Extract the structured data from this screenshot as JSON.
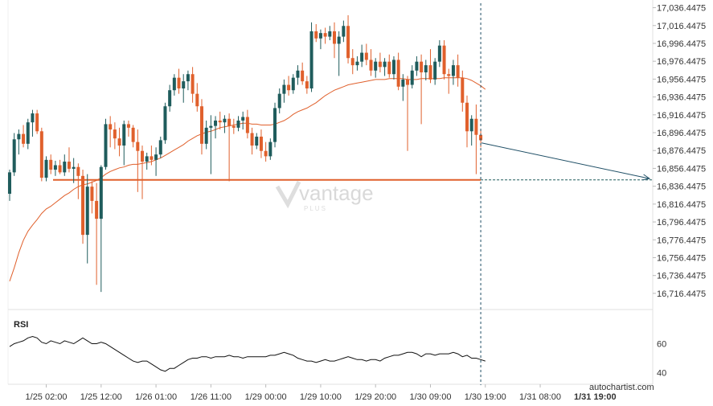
{
  "chart_data": {
    "type": "candlestick",
    "y_ticks": [
      "17,036.4475",
      "17,016.4475",
      "16,996.4475",
      "16,976.4475",
      "16,956.4475",
      "16,936.4475",
      "16,916.4475",
      "16,896.4475",
      "16,876.4475",
      "16,856.4475",
      "16,836.4475",
      "16,816.4475",
      "16,796.4475",
      "16,776.4475",
      "16,756.4475",
      "16,736.4475",
      "16,716.4475"
    ],
    "ylim": [
      16706.4475,
      17041.4475
    ],
    "x_ticks": [
      "1/25 02:00",
      "1/25 12:00",
      "1/26 01:00",
      "1/26 11:00",
      "1/29 00:00",
      "1/29 10:00",
      "1/29 20:00",
      "1/30 09:00",
      "1/30 19:00",
      "1/31 08:00",
      "1/31 19:00"
    ],
    "x_tick_index": [
      8,
      20,
      32,
      44,
      56,
      68,
      80,
      92,
      104,
      116,
      128
    ],
    "highlight_label": "1/31 19:00",
    "support_level": 16843.5,
    "forecast_target": 16845,
    "candles": [
      {
        "o": 16828,
        "h": 16855,
        "l": 16820,
        "c": 16852
      },
      {
        "o": 16852,
        "h": 16896,
        "l": 16848,
        "c": 16889
      },
      {
        "o": 16889,
        "h": 16900,
        "l": 16872,
        "c": 16895
      },
      {
        "o": 16895,
        "h": 16905,
        "l": 16880,
        "c": 16884
      },
      {
        "o": 16884,
        "h": 16912,
        "l": 16878,
        "c": 16908
      },
      {
        "o": 16908,
        "h": 16922,
        "l": 16892,
        "c": 16918
      },
      {
        "o": 16918,
        "h": 16922,
        "l": 16895,
        "c": 16898
      },
      {
        "o": 16898,
        "h": 16902,
        "l": 16842,
        "c": 16846
      },
      {
        "o": 16846,
        "h": 16870,
        "l": 16842,
        "c": 16866
      },
      {
        "o": 16866,
        "h": 16872,
        "l": 16850,
        "c": 16855
      },
      {
        "o": 16855,
        "h": 16865,
        "l": 16848,
        "c": 16860
      },
      {
        "o": 16860,
        "h": 16866,
        "l": 16850,
        "c": 16852
      },
      {
        "o": 16852,
        "h": 16872,
        "l": 16848,
        "c": 16864
      },
      {
        "o": 16864,
        "h": 16880,
        "l": 16852,
        "c": 16856
      },
      {
        "o": 16856,
        "h": 16868,
        "l": 16840,
        "c": 16858
      },
      {
        "o": 16858,
        "h": 16862,
        "l": 16822,
        "c": 16848
      },
      {
        "o": 16848,
        "h": 16855,
        "l": 16772,
        "c": 16782
      },
      {
        "o": 16782,
        "h": 16850,
        "l": 16750,
        "c": 16836
      },
      {
        "o": 16836,
        "h": 16842,
        "l": 16806,
        "c": 16820
      },
      {
        "o": 16820,
        "h": 16840,
        "l": 16726,
        "c": 16800
      },
      {
        "o": 16800,
        "h": 16860,
        "l": 16718,
        "c": 16858
      },
      {
        "o": 16858,
        "h": 16912,
        "l": 16855,
        "c": 16906
      },
      {
        "o": 16906,
        "h": 16915,
        "l": 16880,
        "c": 16900
      },
      {
        "o": 16900,
        "h": 16908,
        "l": 16878,
        "c": 16890
      },
      {
        "o": 16890,
        "h": 16902,
        "l": 16870,
        "c": 16882
      },
      {
        "o": 16882,
        "h": 16910,
        "l": 16860,
        "c": 16906
      },
      {
        "o": 16906,
        "h": 16910,
        "l": 16892,
        "c": 16902
      },
      {
        "o": 16902,
        "h": 16905,
        "l": 16880,
        "c": 16886
      },
      {
        "o": 16886,
        "h": 16900,
        "l": 16830,
        "c": 16876
      },
      {
        "o": 16876,
        "h": 16882,
        "l": 16822,
        "c": 16864
      },
      {
        "o": 16864,
        "h": 16874,
        "l": 16855,
        "c": 16870
      },
      {
        "o": 16870,
        "h": 16882,
        "l": 16860,
        "c": 16866
      },
      {
        "o": 16866,
        "h": 16880,
        "l": 16848,
        "c": 16872
      },
      {
        "o": 16872,
        "h": 16892,
        "l": 16868,
        "c": 16888
      },
      {
        "o": 16888,
        "h": 16930,
        "l": 16884,
        "c": 16926
      },
      {
        "o": 16926,
        "h": 16950,
        "l": 16920,
        "c": 16944
      },
      {
        "o": 16944,
        "h": 16962,
        "l": 16938,
        "c": 16958
      },
      {
        "o": 16958,
        "h": 16968,
        "l": 16940,
        "c": 16946
      },
      {
        "o": 16946,
        "h": 16962,
        "l": 16930,
        "c": 16954
      },
      {
        "o": 16954,
        "h": 16966,
        "l": 16944,
        "c": 16962
      },
      {
        "o": 16962,
        "h": 16970,
        "l": 16930,
        "c": 16940
      },
      {
        "o": 16940,
        "h": 16952,
        "l": 16920,
        "c": 16926
      },
      {
        "o": 16926,
        "h": 16934,
        "l": 16872,
        "c": 16884
      },
      {
        "o": 16884,
        "h": 16910,
        "l": 16878,
        "c": 16902
      },
      {
        "o": 16902,
        "h": 16916,
        "l": 16850,
        "c": 16904
      },
      {
        "o": 16904,
        "h": 16915,
        "l": 16890,
        "c": 16910
      },
      {
        "o": 16910,
        "h": 16920,
        "l": 16900,
        "c": 16908
      },
      {
        "o": 16908,
        "h": 16916,
        "l": 16896,
        "c": 16912
      },
      {
        "o": 16912,
        "h": 16918,
        "l": 16842,
        "c": 16904
      },
      {
        "o": 16904,
        "h": 16912,
        "l": 16895,
        "c": 16902
      },
      {
        "o": 16902,
        "h": 16915,
        "l": 16898,
        "c": 16910
      },
      {
        "o": 16910,
        "h": 16920,
        "l": 16900,
        "c": 16914
      },
      {
        "o": 16914,
        "h": 16922,
        "l": 16890,
        "c": 16896
      },
      {
        "o": 16896,
        "h": 16902,
        "l": 16872,
        "c": 16882
      },
      {
        "o": 16882,
        "h": 16896,
        "l": 16878,
        "c": 16892
      },
      {
        "o": 16892,
        "h": 16900,
        "l": 16868,
        "c": 16876
      },
      {
        "o": 16876,
        "h": 16886,
        "l": 16864,
        "c": 16870
      },
      {
        "o": 16870,
        "h": 16890,
        "l": 16866,
        "c": 16886
      },
      {
        "o": 16886,
        "h": 16930,
        "l": 16880,
        "c": 16924
      },
      {
        "o": 16924,
        "h": 16946,
        "l": 16918,
        "c": 16940
      },
      {
        "o": 16940,
        "h": 16956,
        "l": 16930,
        "c": 16950
      },
      {
        "o": 16950,
        "h": 16960,
        "l": 16938,
        "c": 16944
      },
      {
        "o": 16944,
        "h": 16962,
        "l": 16940,
        "c": 16958
      },
      {
        "o": 16958,
        "h": 16972,
        "l": 16950,
        "c": 16966
      },
      {
        "o": 16966,
        "h": 16975,
        "l": 16950,
        "c": 16954
      },
      {
        "o": 16954,
        "h": 16960,
        "l": 16940,
        "c": 16946
      },
      {
        "o": 16946,
        "h": 17020,
        "l": 16942,
        "c": 17010
      },
      {
        "o": 17010,
        "h": 17018,
        "l": 16998,
        "c": 17002
      },
      {
        "o": 17002,
        "h": 17012,
        "l": 16990,
        "c": 17008
      },
      {
        "o": 17008,
        "h": 17014,
        "l": 16996,
        "c": 17004
      },
      {
        "o": 17004,
        "h": 17016,
        "l": 17000,
        "c": 17010
      },
      {
        "o": 17010,
        "h": 17020,
        "l": 16980,
        "c": 16996
      },
      {
        "o": 16996,
        "h": 17010,
        "l": 16960,
        "c": 17004
      },
      {
        "o": 17004,
        "h": 17022,
        "l": 16998,
        "c": 17016
      },
      {
        "o": 17016,
        "h": 17028,
        "l": 16974,
        "c": 16980
      },
      {
        "o": 16980,
        "h": 16990,
        "l": 16962,
        "c": 16972
      },
      {
        "o": 16972,
        "h": 16982,
        "l": 16966,
        "c": 16976
      },
      {
        "o": 16976,
        "h": 16995,
        "l": 16970,
        "c": 16986
      },
      {
        "o": 16986,
        "h": 16996,
        "l": 16972,
        "c": 16978
      },
      {
        "o": 16978,
        "h": 16990,
        "l": 16960,
        "c": 16966
      },
      {
        "o": 16966,
        "h": 16980,
        "l": 16958,
        "c": 16976
      },
      {
        "o": 16976,
        "h": 16986,
        "l": 16964,
        "c": 16970
      },
      {
        "o": 16970,
        "h": 16980,
        "l": 16960,
        "c": 16976
      },
      {
        "o": 16976,
        "h": 16984,
        "l": 16958,
        "c": 16962
      },
      {
        "o": 16962,
        "h": 16982,
        "l": 16956,
        "c": 16978
      },
      {
        "o": 16978,
        "h": 16986,
        "l": 16944,
        "c": 16948
      },
      {
        "o": 16948,
        "h": 16962,
        "l": 16932,
        "c": 16956
      },
      {
        "o": 16956,
        "h": 16960,
        "l": 16876,
        "c": 16950
      },
      {
        "o": 16950,
        "h": 16972,
        "l": 16946,
        "c": 16966
      },
      {
        "o": 16966,
        "h": 16982,
        "l": 16960,
        "c": 16976
      },
      {
        "o": 16976,
        "h": 16984,
        "l": 16906,
        "c": 16964
      },
      {
        "o": 16964,
        "h": 16978,
        "l": 16955,
        "c": 16972
      },
      {
        "o": 16972,
        "h": 16990,
        "l": 16952,
        "c": 16956
      },
      {
        "o": 16956,
        "h": 16980,
        "l": 16950,
        "c": 16976
      },
      {
        "o": 16976,
        "h": 17000,
        "l": 16970,
        "c": 16994
      },
      {
        "o": 16994,
        "h": 17000,
        "l": 16956,
        "c": 16962
      },
      {
        "o": 16962,
        "h": 16968,
        "l": 16940,
        "c": 16960
      },
      {
        "o": 16960,
        "h": 16978,
        "l": 16950,
        "c": 16972
      },
      {
        "o": 16972,
        "h": 16984,
        "l": 16948,
        "c": 16958
      },
      {
        "o": 16958,
        "h": 16966,
        "l": 16920,
        "c": 16930
      },
      {
        "o": 16930,
        "h": 16938,
        "l": 16880,
        "c": 16898
      },
      {
        "o": 16898,
        "h": 16916,
        "l": 16882,
        "c": 16912
      },
      {
        "o": 16912,
        "h": 16928,
        "l": 16850,
        "c": 16894
      },
      {
        "o": 16894,
        "h": 16900,
        "l": 16880,
        "c": 16888
      }
    ],
    "ma": [
      16730,
      16745,
      16762,
      16776,
      16786,
      16793,
      16799,
      16806,
      16811,
      16814,
      16818,
      16822,
      16826,
      16829,
      16833,
      16836,
      16838,
      16839,
      16841,
      16843,
      16846,
      16850,
      16853,
      16855,
      16857,
      16858,
      16860,
      16861,
      16861,
      16862,
      16863,
      16864,
      16866,
      16868,
      16871,
      16874,
      16877,
      16880,
      16883,
      16887,
      16890,
      16893,
      16895,
      16897,
      16898,
      16900,
      16902,
      16903,
      16904,
      16905,
      16906,
      16907,
      16907,
      16906,
      16906,
      16905,
      16905,
      16905,
      16906,
      16908,
      16910,
      16913,
      16917,
      16920,
      16922,
      16924,
      16927,
      16930,
      16934,
      16938,
      16941,
      16944,
      16946,
      16948,
      16950,
      16951,
      16952,
      16953,
      16954,
      16955,
      16956,
      16956,
      16956,
      16957,
      16957,
      16957,
      16957,
      16956,
      16956,
      16956,
      16957,
      16957,
      16957,
      16957,
      16957,
      16958,
      16958,
      16958,
      16958,
      16958,
      16957,
      16955,
      16952,
      16949,
      16945
    ],
    "rsi_label": "RSI",
    "rsi_ticks": [
      "60",
      "40"
    ],
    "rsi_ylim": [
      32,
      78
    ],
    "rsi": [
      58,
      60,
      61,
      62,
      64,
      65,
      64,
      61,
      60,
      62,
      61,
      60,
      62,
      61,
      60,
      62,
      64,
      62,
      60,
      60,
      61,
      60,
      58,
      56,
      54,
      52,
      50,
      48,
      47,
      48,
      48,
      46,
      44,
      42,
      41,
      43,
      43,
      45,
      47,
      49,
      50,
      50,
      51,
      51,
      50,
      51,
      51,
      51,
      52,
      51,
      51,
      50,
      51,
      51,
      51,
      51,
      51,
      52,
      52,
      53,
      54,
      53,
      52,
      50,
      49,
      48,
      48,
      47,
      48,
      49,
      48,
      48,
      49,
      50,
      51,
      50,
      49,
      49,
      48,
      49,
      49,
      48,
      50,
      51,
      52,
      52,
      53,
      54,
      54,
      53,
      51,
      53,
      53,
      52,
      53,
      53,
      53,
      54,
      53,
      51,
      52,
      50,
      50,
      49,
      48
    ]
  },
  "watermark": {
    "text": "vantage",
    "sub": "PLUS"
  },
  "credit": "autochartist.com"
}
